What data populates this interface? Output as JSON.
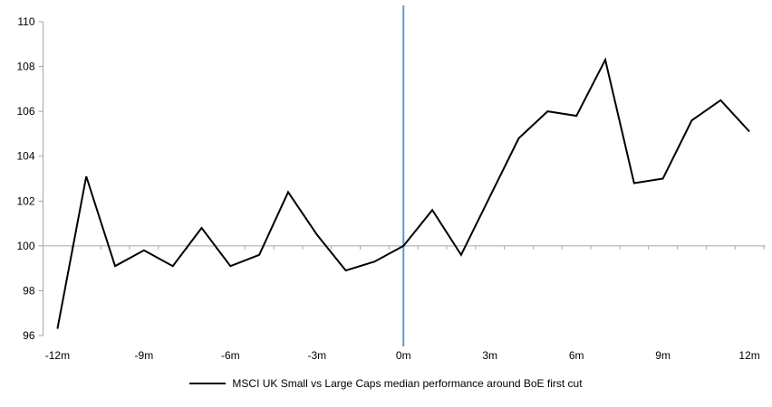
{
  "chart_data": {
    "type": "line",
    "title": "",
    "x": [
      -12,
      -11,
      -10,
      -9,
      -8,
      -7,
      -6,
      -5,
      -4,
      -3,
      -2,
      -1,
      0,
      1,
      2,
      3,
      4,
      5,
      6,
      7,
      8,
      9,
      10,
      11,
      12
    ],
    "series": [
      {
        "name": "MSCI UK Small vs Large Caps median performance around BoE first cut",
        "values": [
          96.3,
          103.1,
          99.1,
          99.8,
          99.1,
          100.8,
          99.1,
          99.6,
          102.4,
          100.5,
          98.9,
          99.3,
          100.0,
          101.6,
          99.6,
          102.2,
          104.8,
          106.0,
          105.8,
          108.3,
          102.8,
          103.0,
          105.6,
          106.5,
          105.1
        ]
      }
    ],
    "ylim": [
      96,
      110
    ],
    "y_tick_step": 2,
    "y_tick_labels": [
      "96",
      "98",
      "100",
      "102",
      "104",
      "106",
      "108",
      "110"
    ],
    "x_tick_positions": [
      -12,
      -9,
      -6,
      -3,
      0,
      3,
      6,
      9,
      12
    ],
    "x_tick_labels": [
      "-12m",
      "-9m",
      "-6m",
      "-3m",
      "0m",
      "3m",
      "6m",
      "9m",
      "12m"
    ],
    "baseline_value": 100,
    "event_line_x": 0,
    "grid": "off",
    "legend_position": "bottom-center",
    "legend": {
      "label": "MSCI UK Small vs Large Caps median performance around BoE first cut"
    },
    "colors": {
      "series_line": "#000000",
      "axis": "#a6a6a6",
      "baseline": "#a6a6a6",
      "event_line": "#5b9bd5",
      "tick_text": "#000000"
    }
  }
}
